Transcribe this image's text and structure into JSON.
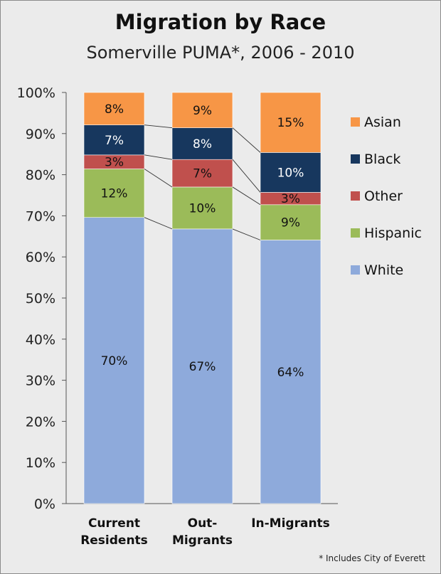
{
  "title": "Migration by Race",
  "subtitle": "Somerville PUMA*, 2006 - 2010",
  "footnote": "* Includes City of Everett",
  "chart_data": {
    "type": "bar",
    "stacked": true,
    "percent": true,
    "title": "Migration by Race",
    "subtitle": "Somerville PUMA*, 2006 - 2010",
    "categories": [
      [
        "Current",
        "Residents"
      ],
      [
        "Out-",
        "Migrants"
      ],
      [
        "In-Migrants"
      ]
    ],
    "series": [
      {
        "name": "White",
        "color": "#8eaadb",
        "values": [
          69.6,
          66.8,
          64.1
        ],
        "labels": [
          "70%",
          "67%",
          "64%"
        ]
      },
      {
        "name": "Hispanic",
        "color": "#9bbb59",
        "values": [
          11.8,
          10.2,
          8.6
        ],
        "labels": [
          "12%",
          "10%",
          "9%"
        ]
      },
      {
        "name": "Other",
        "color": "#c0504d",
        "values": [
          3.4,
          6.7,
          3.0
        ],
        "labels": [
          "3%",
          "7%",
          "3%"
        ]
      },
      {
        "name": "Black",
        "color": "#17375e",
        "values": [
          7.3,
          7.7,
          9.7
        ],
        "labels": [
          "7%",
          "8%",
          "10%"
        ]
      },
      {
        "name": "Asian",
        "color": "#f79646",
        "values": [
          7.9,
          8.6,
          14.6
        ],
        "labels": [
          "8%",
          "9%",
          "15%"
        ]
      }
    ],
    "yticks": [
      "0%",
      "10%",
      "20%",
      "30%",
      "40%",
      "50%",
      "60%",
      "70%",
      "80%",
      "90%",
      "100%"
    ],
    "ylim": [
      0,
      100
    ],
    "legend": [
      "Asian",
      "Black",
      "Other",
      "Hispanic",
      "White"
    ],
    "legend_position": "right",
    "series_lines": true
  }
}
